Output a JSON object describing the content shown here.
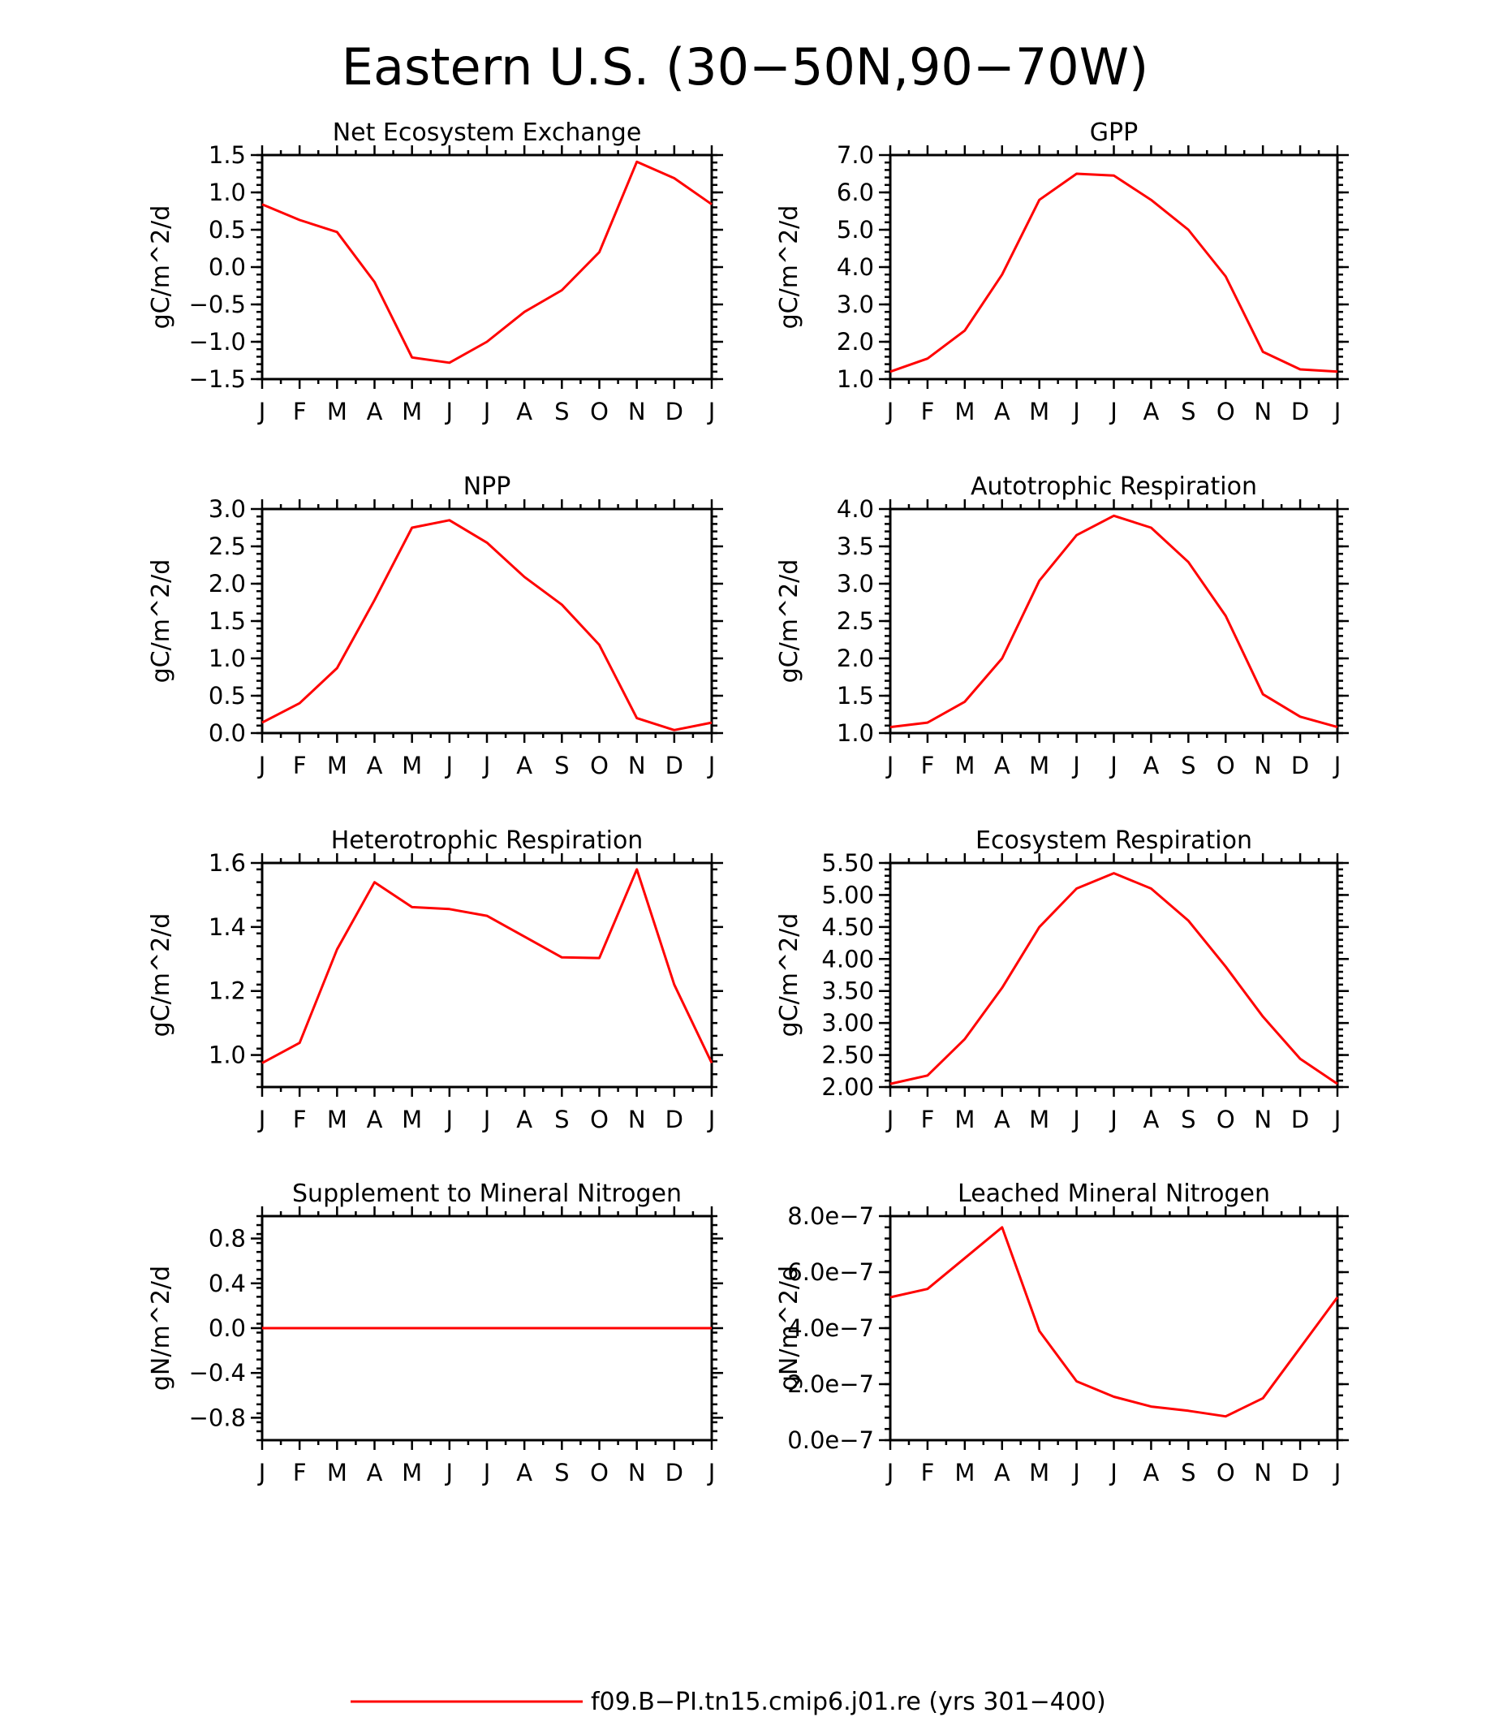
{
  "figure": {
    "title": "Eastern U.S. (30−50N,90−70W)",
    "legend_label": "f09.B−PI.tn15.cmip6.j01.re (yrs 301−400)",
    "legend_position": "bottom-center"
  },
  "colors": {
    "series": "#ff0000",
    "axes": "#000000",
    "background": "#ffffff"
  },
  "chart_data": [
    {
      "type": "line",
      "title": "Net Ecosystem Exchange",
      "ylabel": "gC/m^2/d",
      "categories": [
        "J",
        "F",
        "M",
        "A",
        "M",
        "J",
        "J",
        "A",
        "S",
        "O",
        "N",
        "D",
        "J"
      ],
      "ylim": [
        -1.5,
        1.5
      ],
      "yticks": [
        -1.5,
        -1.0,
        -0.5,
        0.0,
        0.5,
        1.0,
        1.5
      ],
      "ytick_labels": [
        "−1.5",
        "−1.0",
        "−0.5",
        "0.0",
        "0.5",
        "1.0",
        "1.5"
      ],
      "series": [
        {
          "name": "f09.B−PI.tn15.cmip6.j01.re (yrs 301−400)",
          "values": [
            0.84,
            0.63,
            0.47,
            -0.2,
            -1.21,
            -1.28,
            -1.0,
            -0.6,
            -0.31,
            0.2,
            1.41,
            1.19,
            0.84
          ]
        }
      ]
    },
    {
      "type": "line",
      "title": "GPP",
      "ylabel": "gC/m^2/d",
      "categories": [
        "J",
        "F",
        "M",
        "A",
        "M",
        "J",
        "J",
        "A",
        "S",
        "O",
        "N",
        "D",
        "J"
      ],
      "ylim": [
        1.0,
        7.0
      ],
      "yticks": [
        1,
        2,
        3,
        4,
        5,
        6,
        7
      ],
      "ytick_labels": [
        "1.0",
        "2.0",
        "3.0",
        "4.0",
        "5.0",
        "6.0",
        "7.0"
      ],
      "series": [
        {
          "name": "f09.B−PI.tn15.cmip6.j01.re (yrs 301−400)",
          "values": [
            1.2,
            1.55,
            2.3,
            3.8,
            5.8,
            6.5,
            6.45,
            5.8,
            5.0,
            3.75,
            1.73,
            1.26,
            1.2
          ]
        }
      ]
    },
    {
      "type": "line",
      "title": "NPP",
      "ylabel": "gC/m^2/d",
      "categories": [
        "J",
        "F",
        "M",
        "A",
        "M",
        "J",
        "J",
        "A",
        "S",
        "O",
        "N",
        "D",
        "J"
      ],
      "ylim": [
        0.0,
        3.0
      ],
      "yticks": [
        0,
        0.5,
        1,
        1.5,
        2,
        2.5,
        3
      ],
      "ytick_labels": [
        "0.0",
        "0.5",
        "1.0",
        "1.5",
        "2.0",
        "2.5",
        "3.0"
      ],
      "series": [
        {
          "name": "f09.B−PI.tn15.cmip6.j01.re (yrs 301−400)",
          "values": [
            0.14,
            0.4,
            0.87,
            1.78,
            2.75,
            2.85,
            2.55,
            2.09,
            1.72,
            1.18,
            0.2,
            0.04,
            0.14
          ]
        }
      ]
    },
    {
      "type": "line",
      "title": "Autotrophic Respiration",
      "ylabel": "gC/m^2/d",
      "categories": [
        "J",
        "F",
        "M",
        "A",
        "M",
        "J",
        "J",
        "A",
        "S",
        "O",
        "N",
        "D",
        "J"
      ],
      "ylim": [
        1.0,
        4.0
      ],
      "yticks": [
        1,
        1.5,
        2,
        2.5,
        3,
        3.5,
        4
      ],
      "ytick_labels": [
        "1.0",
        "1.5",
        "2.0",
        "2.5",
        "3.0",
        "3.5",
        "4.0"
      ],
      "series": [
        {
          "name": "f09.B−PI.tn15.cmip6.j01.re (yrs 301−400)",
          "values": [
            1.08,
            1.14,
            1.42,
            2.0,
            3.04,
            3.65,
            3.91,
            3.75,
            3.29,
            2.57,
            1.52,
            1.22,
            1.08
          ]
        }
      ]
    },
    {
      "type": "line",
      "title": "Heterotrophic Respiration",
      "ylabel": "gC/m^2/d",
      "categories": [
        "J",
        "F",
        "M",
        "A",
        "M",
        "J",
        "J",
        "A",
        "S",
        "O",
        "N",
        "D",
        "J"
      ],
      "ylim": [
        0.9,
        1.6
      ],
      "yticks": [
        1.0,
        1.2,
        1.4,
        1.6
      ],
      "ytick_labels": [
        "1.0",
        "1.2",
        "1.4",
        "1.6"
      ],
      "series": [
        {
          "name": "f09.B−PI.tn15.cmip6.j01.re (yrs 301−400)",
          "values": [
            0.975,
            1.038,
            1.33,
            1.54,
            1.462,
            1.456,
            1.435,
            1.37,
            1.305,
            1.303,
            1.58,
            1.22,
            0.975
          ]
        }
      ]
    },
    {
      "type": "line",
      "title": "Ecosystem Respiration",
      "ylabel": "gC/m^2/d",
      "categories": [
        "J",
        "F",
        "M",
        "A",
        "M",
        "J",
        "J",
        "A",
        "S",
        "O",
        "N",
        "D",
        "J"
      ],
      "ylim": [
        2.0,
        5.5
      ],
      "yticks": [
        2,
        2.5,
        3,
        3.5,
        4,
        4.5,
        5,
        5.5
      ],
      "ytick_labels": [
        "2.00",
        "2.50",
        "3.00",
        "3.50",
        "4.00",
        "4.50",
        "5.00",
        "5.50"
      ],
      "series": [
        {
          "name": "f09.B−PI.tn15.cmip6.j01.re (yrs 301−400)",
          "values": [
            2.05,
            2.18,
            2.75,
            3.55,
            4.5,
            5.1,
            5.34,
            5.1,
            4.6,
            3.88,
            3.1,
            2.44,
            2.05
          ]
        }
      ]
    },
    {
      "type": "line",
      "title": "Supplement to Mineral Nitrogen",
      "ylabel": "gN/m^2/d",
      "categories": [
        "J",
        "F",
        "M",
        "A",
        "M",
        "J",
        "J",
        "A",
        "S",
        "O",
        "N",
        "D",
        "J"
      ],
      "ylim": [
        -1.0,
        1.0
      ],
      "yticks": [
        -0.8,
        -0.4,
        0.0,
        0.4,
        0.8
      ],
      "ytick_labels": [
        "−0.8",
        "−0.4",
        "0.0",
        "0.4",
        "0.8"
      ],
      "series": [
        {
          "name": "f09.B−PI.tn15.cmip6.j01.re (yrs 301−400)",
          "values": [
            0,
            0,
            0,
            0,
            0,
            0,
            0,
            0,
            0,
            0,
            0,
            0,
            0
          ]
        }
      ]
    },
    {
      "type": "line",
      "title": "Leached Mineral Nitrogen",
      "ylabel": "gN/m^2/d",
      "categories": [
        "J",
        "F",
        "M",
        "A",
        "M",
        "J",
        "J",
        "A",
        "S",
        "O",
        "N",
        "D",
        "J"
      ],
      "ylim": [
        0.0,
        8e-07
      ],
      "yticks": [
        0,
        2e-07,
        4e-07,
        6e-07,
        8e-07
      ],
      "ytick_labels": [
        "0.0e−7",
        "2.0e−7",
        "4.0e−7",
        "6.0e−7",
        "8.0e−7"
      ],
      "series": [
        {
          "name": "f09.B−PI.tn15.cmip6.j01.re (yrs 301−400)",
          "values": [
            5.1e-07,
            5.4e-07,
            6.5e-07,
            7.6e-07,
            3.9e-07,
            2.1e-07,
            1.55e-07,
            1.2e-07,
            1.05e-07,
            8.5e-08,
            1.5e-07,
            3.3e-07,
            5.1e-07
          ]
        }
      ]
    }
  ]
}
